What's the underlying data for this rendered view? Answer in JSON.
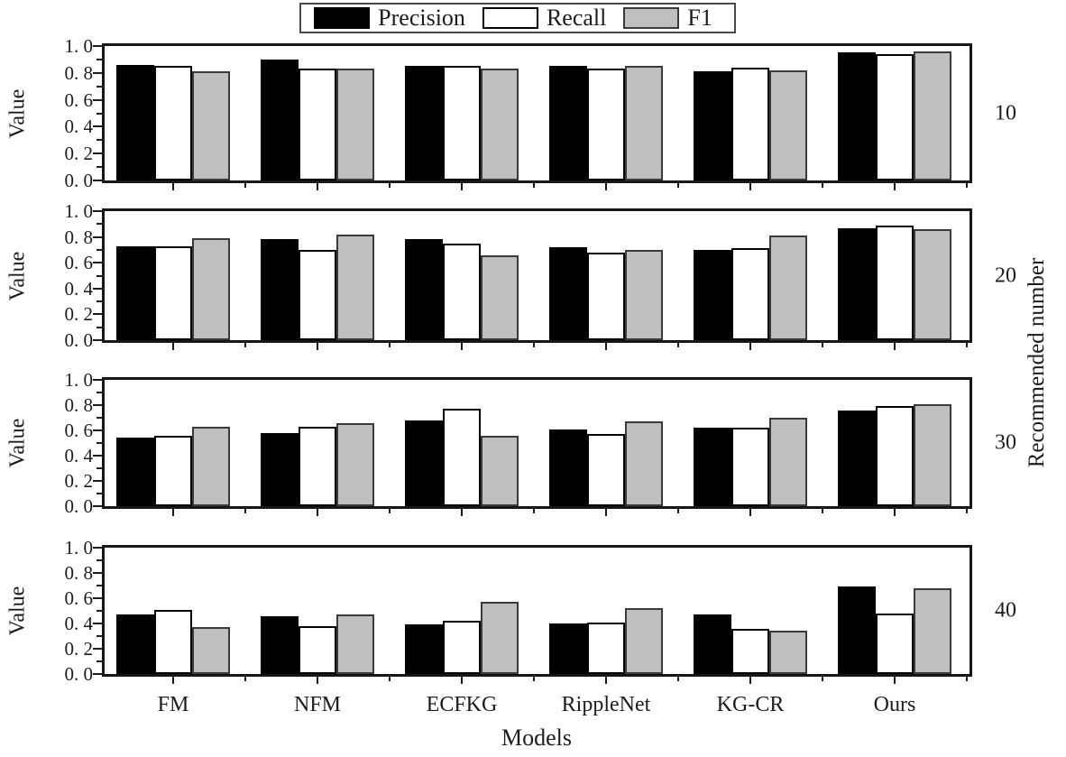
{
  "legend": {
    "items": [
      {
        "label": "Precision",
        "color": "#000000",
        "border": "#000000"
      },
      {
        "label": "Recall",
        "color": "#ffffff",
        "border": "#000000"
      },
      {
        "label": "F1",
        "color": "#bfbfbf",
        "border": "#3a3a3a"
      }
    ]
  },
  "chart_data": {
    "type": "bar",
    "title": "",
    "categories": [
      "FM",
      "NFM",
      "ECFKG",
      "RippleNet",
      "KG-CR",
      "Ours"
    ],
    "xlabel": "Models",
    "ylabel": "Value",
    "right_axis_label": "Recommended number",
    "ylim": [
      0.0,
      1.0
    ],
    "ytick_values": [
      0.0,
      0.2,
      0.4,
      0.6,
      0.8,
      1.0
    ],
    "ytick_labels": [
      "0. 0",
      "0. 2",
      "0. 4",
      "0. 6",
      "0. 8",
      "1. 0"
    ],
    "grid": false,
    "legend_position": "top-center",
    "panels": [
      {
        "recommended_number": "10",
        "series": [
          {
            "name": "Precision",
            "values": [
              0.86,
              0.9,
              0.85,
              0.85,
              0.81,
              0.95
            ]
          },
          {
            "name": "Recall",
            "values": [
              0.85,
              0.83,
              0.85,
              0.83,
              0.84,
              0.94
            ]
          },
          {
            "name": "F1",
            "values": [
              0.81,
              0.83,
              0.83,
              0.85,
              0.82,
              0.96
            ]
          }
        ]
      },
      {
        "recommended_number": "20",
        "series": [
          {
            "name": "Precision",
            "values": [
              0.73,
              0.78,
              0.78,
              0.72,
              0.7,
              0.87
            ]
          },
          {
            "name": "Recall",
            "values": [
              0.73,
              0.7,
              0.75,
              0.68,
              0.71,
              0.89
            ]
          },
          {
            "name": "F1",
            "values": [
              0.79,
              0.82,
              0.66,
              0.7,
              0.81,
              0.86
            ]
          }
        ]
      },
      {
        "recommended_number": "30",
        "series": [
          {
            "name": "Precision",
            "values": [
              0.54,
              0.58,
              0.68,
              0.61,
              0.62,
              0.76
            ]
          },
          {
            "name": "Recall",
            "values": [
              0.56,
              0.63,
              0.77,
              0.57,
              0.62,
              0.79
            ]
          },
          {
            "name": "F1",
            "values": [
              0.63,
              0.66,
              0.56,
              0.67,
              0.7,
              0.81
            ]
          }
        ]
      },
      {
        "recommended_number": "40",
        "series": [
          {
            "name": "Precision",
            "values": [
              0.47,
              0.46,
              0.39,
              0.4,
              0.47,
              0.69
            ]
          },
          {
            "name": "Recall",
            "values": [
              0.51,
              0.38,
              0.42,
              0.41,
              0.36,
              0.48
            ]
          },
          {
            "name": "F1",
            "values": [
              0.37,
              0.47,
              0.57,
              0.52,
              0.34,
              0.68
            ]
          }
        ]
      }
    ]
  }
}
